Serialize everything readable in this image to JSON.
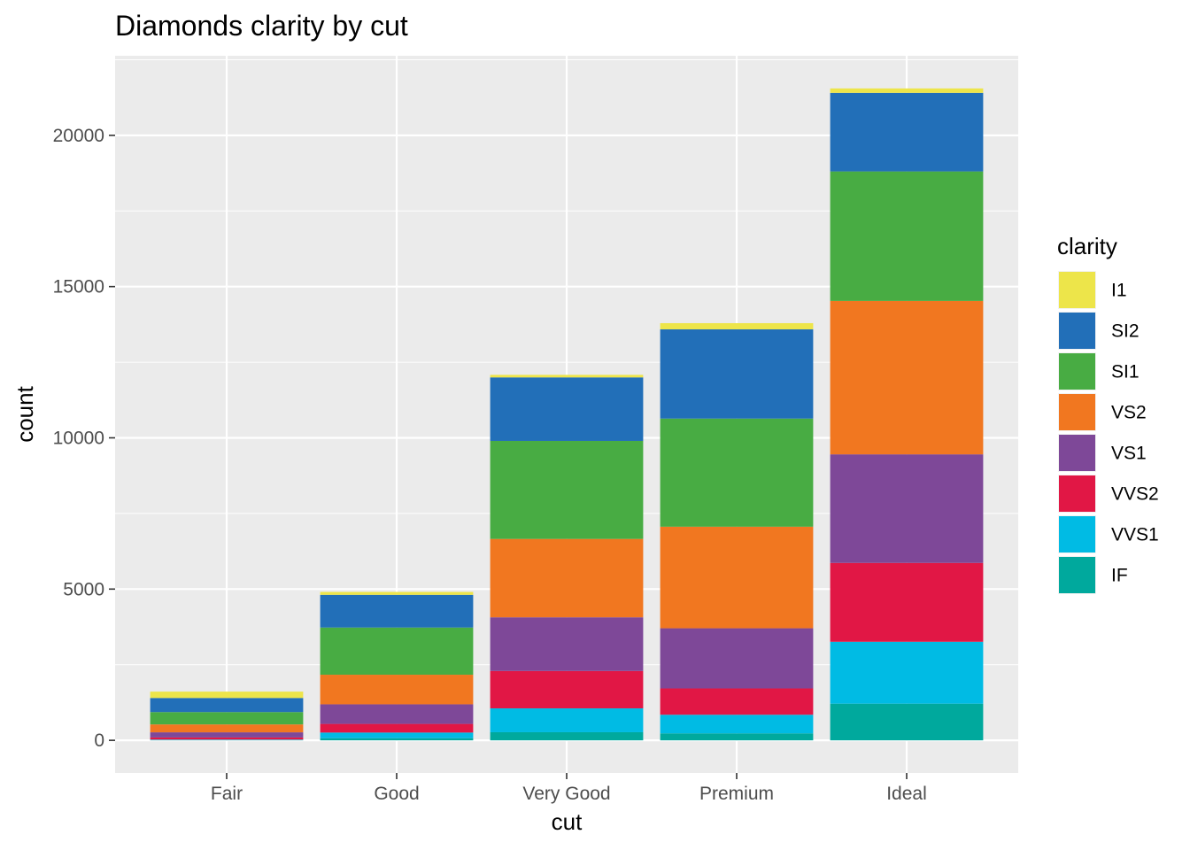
{
  "chart_data": {
    "type": "bar",
    "stacked": true,
    "title": "Diamonds clarity by cut",
    "xlabel": "cut",
    "ylabel": "count",
    "categories": [
      "Fair",
      "Good",
      "Very Good",
      "Premium",
      "Ideal"
    ],
    "y_ticks": [
      "0",
      "5000",
      "10000",
      "15000",
      "20000"
    ],
    "ylim": [
      -1079,
      22630
    ],
    "grid": true,
    "legend": {
      "title": "clarity",
      "position": "right"
    },
    "series": [
      {
        "name": "I1",
        "color": "#EDE54A",
        "values": [
          210,
          96,
          84,
          205,
          146
        ]
      },
      {
        "name": "SI2",
        "color": "#226FB8",
        "values": [
          466,
          1081,
          2100,
          2949,
          2598
        ]
      },
      {
        "name": "SI1",
        "color": "#48AC43",
        "values": [
          408,
          1560,
          3240,
          3575,
          4282
        ]
      },
      {
        "name": "VS2",
        "color": "#F17720",
        "values": [
          261,
          978,
          2591,
          3357,
          5071
        ]
      },
      {
        "name": "VS1",
        "color": "#7E4898",
        "values": [
          170,
          648,
          1775,
          1989,
          3589
        ]
      },
      {
        "name": "VVS2",
        "color": "#E11745",
        "values": [
          69,
          286,
          1235,
          870,
          2606
        ]
      },
      {
        "name": "VVS1",
        "color": "#00BBE4",
        "values": [
          17,
          186,
          789,
          616,
          2047
        ]
      },
      {
        "name": "IF",
        "color": "#00A99D",
        "values": [
          9,
          71,
          268,
          230,
          1212
        ]
      }
    ]
  }
}
